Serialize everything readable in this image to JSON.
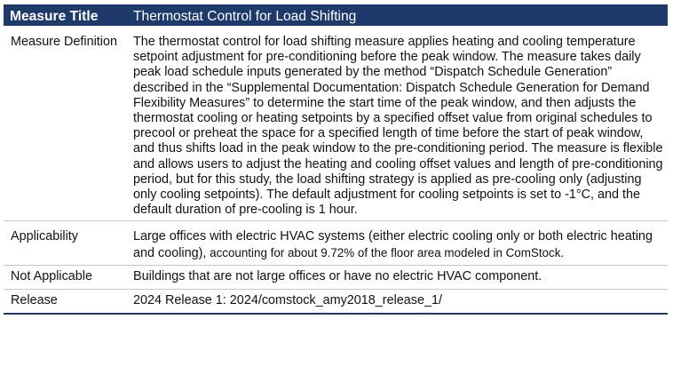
{
  "table": {
    "header": {
      "col1": "Measure Title",
      "col2": "Thermostat Control for Load Shifting"
    },
    "rows": [
      {
        "label": "Measure Definition",
        "value": "The thermostat control for load shifting measure applies heating and cooling temperature setpoint adjustment for pre-conditioning before the peak window. The measure takes daily peak load schedule inputs generated by the method “Dispatch Schedule Generation” described in the “Supplemental Documentation: Dispatch Schedule Generation for Demand Flexibility Measures” to determine the start time of the peak window, and then adjusts the thermostat cooling or heating setpoints by a specified offset value from original schedules to precool or preheat the space for a specified length of time before the start of peak window, and thus shifts load in the peak window to the pre-conditioning period. The measure is flexible and allows users to adjust the heating and cooling offset values and length of pre-conditioning period, but for this study, the load shifting strategy is applied as pre-cooling only (adjusting only cooling setpoints). The default adjustment for cooling setpoints is set to -1°C, and the default duration of pre-cooling is 1 hour."
      },
      {
        "label": "Applicability",
        "value_main": "Large offices with electric HVAC systems (either electric cooling only or both electric heating and cooling),",
        "value_small": " accounting for about 9.72% of the floor area modeled in ComStock."
      },
      {
        "label": "Not Applicable",
        "value": "Buildings that are not large offices or have no electric HVAC component."
      },
      {
        "label": "Release",
        "value": "2024 Release 1: 2024/comstock_amy2018_release_1/"
      }
    ]
  }
}
